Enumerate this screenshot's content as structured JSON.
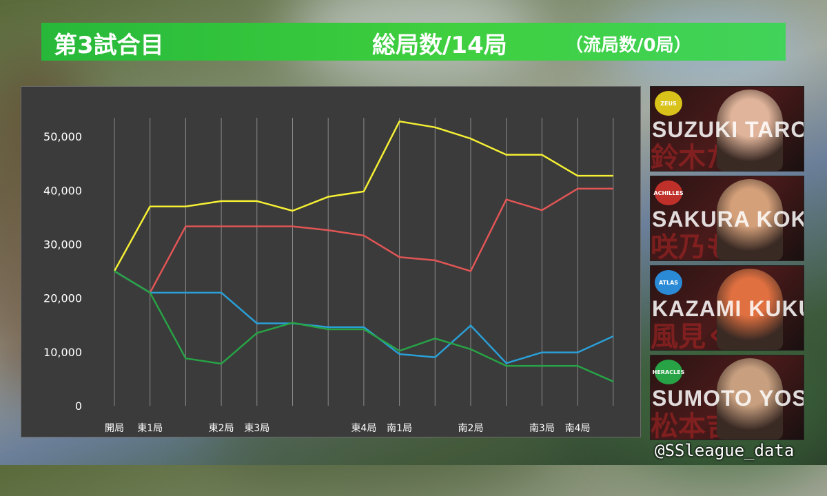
{
  "header": {
    "game_label": "第3試合目",
    "total_label": "総局数/14局",
    "ryukyoku_label": "（流局数/0局）"
  },
  "colors": {
    "banner": "#3fcf3f",
    "chart_bg": "#3b3b3b",
    "yellow": "#f5f034",
    "red": "#e25555",
    "blue": "#2a9fd6",
    "green": "#27a346"
  },
  "chart_data": {
    "type": "line",
    "title": "",
    "xlabel": "",
    "ylabel": "",
    "ylim": [
      0,
      55000
    ],
    "yticks": [
      0,
      10000,
      20000,
      30000,
      40000,
      50000
    ],
    "ytick_labels": [
      "0",
      "10,000",
      "20,000",
      "30,000",
      "40,000",
      "50,000"
    ],
    "x_count": 15,
    "x_labels": [
      "開局",
      "東1局",
      "",
      "東2局",
      "東3局",
      "",
      "",
      "東4局",
      "南1局",
      "",
      "南2局",
      "",
      "南3局",
      "南4局",
      ""
    ],
    "grid": "vertical",
    "legend": "none",
    "series": [
      {
        "color_key": "yellow",
        "values": [
          25000,
          37000,
          37000,
          38000,
          38000,
          36200,
          38800,
          39800,
          52800,
          51700,
          49600,
          46600,
          46600,
          42700,
          42700
        ]
      },
      {
        "color_key": "red",
        "values": [
          25000,
          21000,
          33300,
          33300,
          33300,
          33300,
          32600,
          31600,
          27600,
          27000,
          25000,
          38300,
          36300,
          40300,
          40300
        ]
      },
      {
        "color_key": "blue",
        "values": [
          25000,
          21000,
          21000,
          21000,
          15300,
          15300,
          14600,
          14600,
          9600,
          9000,
          14900,
          7900,
          9900,
          9900,
          12900
        ]
      },
      {
        "color_key": "green",
        "values": [
          25000,
          21000,
          8800,
          7800,
          13500,
          15400,
          14200,
          14200,
          10200,
          12500,
          10500,
          7400,
          7400,
          7400,
          4500
        ]
      }
    ]
  },
  "players": [
    {
      "name": "SUZUKI TARO",
      "team": "ZEUS",
      "kanji": "鈴木たろう",
      "team_color": "#d9c21a",
      "portrait_color": "#e0b49a"
    },
    {
      "name": "SAKURA KOKOCO",
      "team": "ACHILLES",
      "kanji": "咲乃もこ",
      "team_color": "#c0302a",
      "portrait_color": "#d4a07a"
    },
    {
      "name": "KAZAMI KUKU",
      "team": "ATLAS",
      "kanji": "風見くく",
      "team_color": "#2a8ad6",
      "portrait_color": "#e07040"
    },
    {
      "name": "SUMOTO YOSHII",
      "team": "HERACLES",
      "kanji": "松本吉弘",
      "team_color": "#27a346",
      "portrait_color": "#c8a080"
    }
  ],
  "handle": "@SSleague_data"
}
